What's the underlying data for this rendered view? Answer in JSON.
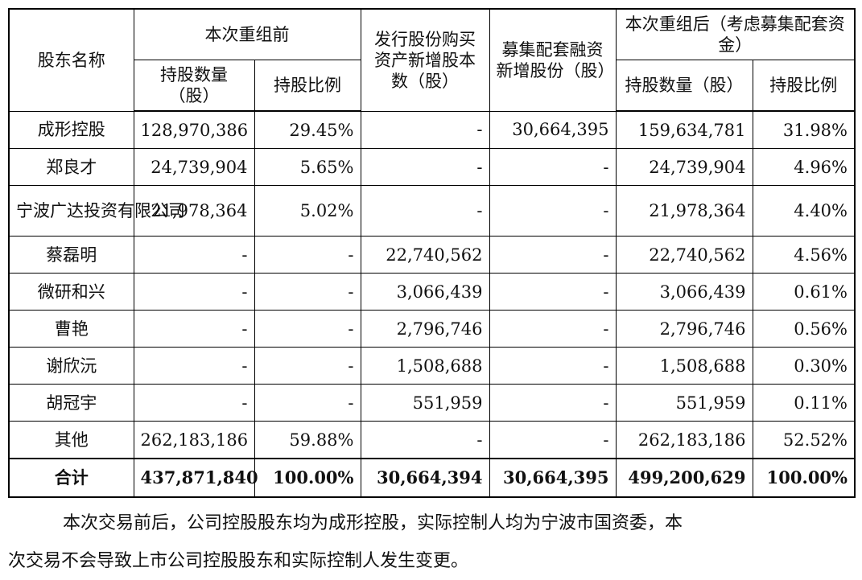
{
  "table": {
    "header": {
      "shareholder_name": "股东名称",
      "before_group": "本次重组前",
      "issued_shares": "发行股份购买资产新增股本数（股）",
      "raised_shares": "募集配套融资新增股份（股）",
      "after_group": "本次重组后（考虑募集配套资金）",
      "before_qty": "持股数量（股）",
      "before_ratio": "持股比例",
      "after_qty": "持股数量（股）",
      "after_ratio": "持股比例"
    },
    "rows": [
      {
        "name": "成形控股",
        "before_qty": "128,970,386",
        "before_ratio": "29.45%",
        "issued": "-",
        "raised": "30,664,395",
        "after_qty": "159,634,781",
        "after_ratio": "31.98%"
      },
      {
        "name": "郑良才",
        "before_qty": "24,739,904",
        "before_ratio": "5.65%",
        "issued": "-",
        "raised": "-",
        "after_qty": "24,739,904",
        "after_ratio": "4.96%"
      },
      {
        "name": "宁波广达投资有限公司",
        "before_qty": "21,978,364",
        "before_ratio": "5.02%",
        "issued": "-",
        "raised": "-",
        "after_qty": "21,978,364",
        "after_ratio": "4.40%"
      },
      {
        "name": "蔡磊明",
        "before_qty": "-",
        "before_ratio": "-",
        "issued": "22,740,562",
        "raised": "-",
        "after_qty": "22,740,562",
        "after_ratio": "4.56%"
      },
      {
        "name": "微研和兴",
        "before_qty": "-",
        "before_ratio": "-",
        "issued": "3,066,439",
        "raised": "-",
        "after_qty": "3,066,439",
        "after_ratio": "0.61%"
      },
      {
        "name": "曹艳",
        "before_qty": "-",
        "before_ratio": "-",
        "issued": "2,796,746",
        "raised": "-",
        "after_qty": "2,796,746",
        "after_ratio": "0.56%"
      },
      {
        "name": "谢欣沅",
        "before_qty": "-",
        "before_ratio": "-",
        "issued": "1,508,688",
        "raised": "-",
        "after_qty": "1,508,688",
        "after_ratio": "0.30%"
      },
      {
        "name": "胡冠宇",
        "before_qty": "-",
        "before_ratio": "-",
        "issued": "551,959",
        "raised": "-",
        "after_qty": "551,959",
        "after_ratio": "0.11%"
      },
      {
        "name": "其他",
        "before_qty": "262,183,186",
        "before_ratio": "59.88%",
        "issued": "-",
        "raised": "-",
        "after_qty": "262,183,186",
        "after_ratio": "52.52%"
      }
    ],
    "total": {
      "name": "合计",
      "before_qty": "437,871,840",
      "before_ratio": "100.00%",
      "issued": "30,664,394",
      "raised": "30,664,395",
      "after_qty": "499,200,629",
      "after_ratio": "100.00%"
    }
  },
  "paragraph": {
    "line1": "本次交易前后，公司控股股东均为成形控股，实际控制人均为宁波市国资委，本",
    "line2": "次交易不会导致上市公司控股股东和实际控制人发生变更。"
  }
}
